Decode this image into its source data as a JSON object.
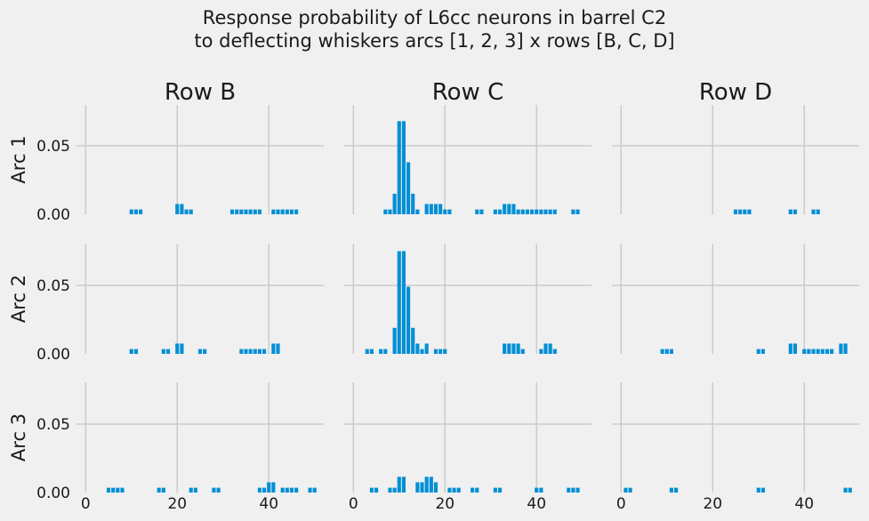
{
  "figure": {
    "title_line1": "Response probability of L6cc neurons in barrel C2",
    "title_line2": "to deflecting whiskers arcs [1, 2, 3] x rows [B, C, D]"
  },
  "colors": {
    "background": "#f0f0f0",
    "bar": "#008fd5",
    "grid": "#cbcbcb",
    "text": "#1a1a1a"
  },
  "chart_data": {
    "type": "bar",
    "columns": [
      "Row B",
      "Row C",
      "Row D"
    ],
    "rows": [
      "Arc 1",
      "Arc 2",
      "Arc 3"
    ],
    "xlim": [
      -2,
      52
    ],
    "ylim": [
      0,
      0.078
    ],
    "xticks": [
      0,
      20,
      40
    ],
    "xtick_labels": [
      "0",
      "20",
      "40"
    ],
    "yticks": [
      0.0,
      0.05
    ],
    "ytick_labels": [
      "0.00",
      "0.05"
    ],
    "grid": true,
    "panels": [
      {
        "row": "Arc 1",
        "column": "Row B",
        "x": [
          10,
          11,
          12,
          20,
          21,
          22,
          23,
          32,
          33,
          34,
          35,
          36,
          37,
          38,
          41,
          42,
          43,
          44,
          45,
          46
        ],
        "values": [
          0.0035,
          0.0035,
          0.0035,
          0.0075,
          0.0075,
          0.0035,
          0.0035,
          0.0035,
          0.0035,
          0.0035,
          0.0035,
          0.0035,
          0.0035,
          0.0035,
          0.0035,
          0.0035,
          0.0035,
          0.0035,
          0.0035,
          0.0035
        ]
      },
      {
        "row": "Arc 1",
        "column": "Row C",
        "x": [
          7,
          8,
          9,
          10,
          11,
          12,
          13,
          14,
          16,
          17,
          18,
          19,
          20,
          21,
          27,
          28,
          31,
          32,
          33,
          34,
          35,
          36,
          37,
          38,
          39,
          40,
          41,
          42,
          43,
          44,
          48,
          49
        ],
        "values": [
          0.0035,
          0.0035,
          0.015,
          0.068,
          0.068,
          0.038,
          0.015,
          0.0035,
          0.0075,
          0.0075,
          0.0075,
          0.0075,
          0.0035,
          0.0035,
          0.0035,
          0.0035,
          0.0035,
          0.0035,
          0.0075,
          0.0075,
          0.0075,
          0.0035,
          0.0035,
          0.0035,
          0.0035,
          0.0035,
          0.0035,
          0.0035,
          0.0035,
          0.0035,
          0.0035,
          0.0035
        ]
      },
      {
        "row": "Arc 1",
        "column": "Row D",
        "x": [
          25,
          26,
          27,
          28,
          37,
          38,
          42,
          43
        ],
        "values": [
          0.0035,
          0.0035,
          0.0035,
          0.0035,
          0.0035,
          0.0035,
          0.0035,
          0.0035
        ]
      },
      {
        "row": "Arc 2",
        "column": "Row B",
        "x": [
          10,
          11,
          17,
          18,
          20,
          21,
          25,
          26,
          34,
          35,
          36,
          37,
          38,
          39,
          41,
          42
        ],
        "values": [
          0.0035,
          0.0035,
          0.0035,
          0.0035,
          0.0075,
          0.0075,
          0.0035,
          0.0035,
          0.0035,
          0.0035,
          0.0035,
          0.0035,
          0.0035,
          0.0035,
          0.0075,
          0.0075
        ]
      },
      {
        "row": "Arc 2",
        "column": "Row C",
        "x": [
          3,
          4,
          6,
          7,
          9,
          10,
          11,
          12,
          13,
          14,
          15,
          16,
          18,
          19,
          20,
          33,
          34,
          35,
          36,
          37,
          41,
          42,
          43,
          44
        ],
        "values": [
          0.0035,
          0.0035,
          0.0035,
          0.0035,
          0.019,
          0.075,
          0.075,
          0.049,
          0.019,
          0.0075,
          0.0035,
          0.0075,
          0.0035,
          0.0035,
          0.0035,
          0.0075,
          0.0075,
          0.0075,
          0.0075,
          0.0035,
          0.0035,
          0.0075,
          0.0075,
          0.0035
        ]
      },
      {
        "row": "Arc 2",
        "column": "Row D",
        "x": [
          9,
          10,
          11,
          30,
          31,
          37,
          38,
          40,
          41,
          42,
          43,
          44,
          45,
          46,
          48,
          49
        ],
        "values": [
          0.0035,
          0.0035,
          0.0035,
          0.0035,
          0.0035,
          0.0075,
          0.0075,
          0.0035,
          0.0035,
          0.0035,
          0.0035,
          0.0035,
          0.0035,
          0.0035,
          0.0075,
          0.0075
        ]
      },
      {
        "row": "Arc 3",
        "column": "Row B",
        "x": [
          5,
          6,
          7,
          8,
          16,
          17,
          23,
          24,
          28,
          29,
          38,
          39,
          40,
          41,
          43,
          44,
          45,
          46,
          49,
          50
        ],
        "values": [
          0.0035,
          0.0035,
          0.0035,
          0.0035,
          0.0035,
          0.0035,
          0.0035,
          0.0035,
          0.0035,
          0.0035,
          0.0035,
          0.0035,
          0.0075,
          0.0075,
          0.0035,
          0.0035,
          0.0035,
          0.0035,
          0.0035,
          0.0035
        ]
      },
      {
        "row": "Arc 3",
        "column": "Row C",
        "x": [
          4,
          5,
          8,
          9,
          10,
          11,
          14,
          15,
          16,
          17,
          18,
          21,
          22,
          23,
          26,
          27,
          31,
          32,
          40,
          41,
          47,
          48,
          49
        ],
        "values": [
          0.0035,
          0.0035,
          0.0035,
          0.0035,
          0.0115,
          0.0115,
          0.0075,
          0.0075,
          0.0115,
          0.0115,
          0.0075,
          0.0035,
          0.0035,
          0.0035,
          0.0035,
          0.0035,
          0.0035,
          0.0035,
          0.0035,
          0.0035,
          0.0035,
          0.0035,
          0.0035
        ]
      },
      {
        "row": "Arc 3",
        "column": "Row D",
        "x": [
          1,
          2,
          11,
          12,
          30,
          31,
          49,
          50
        ],
        "values": [
          0.0035,
          0.0035,
          0.0035,
          0.0035,
          0.0035,
          0.0035,
          0.0035,
          0.0035
        ]
      }
    ]
  }
}
